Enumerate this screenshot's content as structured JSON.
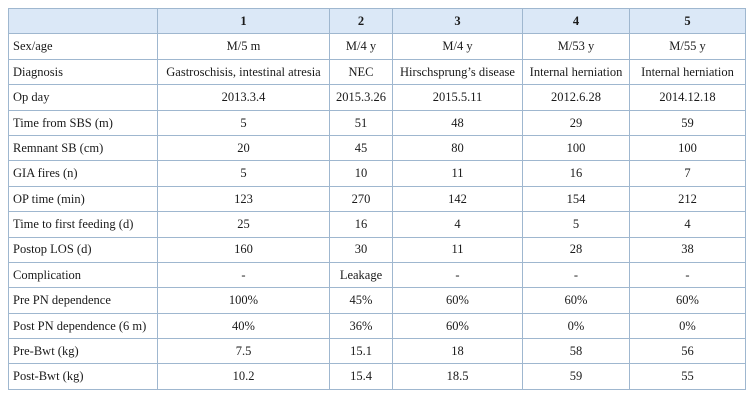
{
  "table": {
    "columns": [
      "",
      "1",
      "2",
      "3",
      "4",
      "5"
    ],
    "rows": [
      [
        "Sex/age",
        "M/5 m",
        "M/4 y",
        "M/4 y",
        "M/53 y",
        "M/55 y"
      ],
      [
        "Diagnosis",
        "Gastroschisis, intestinal atresia",
        "NEC",
        "Hirschsprung’s disease",
        "Internal herniation",
        "Internal herniation"
      ],
      [
        "Op day",
        "2013.3.4",
        "2015.3.26",
        "2015.5.11",
        "2012.6.28",
        "2014.12.18"
      ],
      [
        "Time from SBS (m)",
        "5",
        "51",
        "48",
        "29",
        "59"
      ],
      [
        "Remnant SB (cm)",
        "20",
        "45",
        "80",
        "100",
        "100"
      ],
      [
        "GIA fires (n)",
        "5",
        "10",
        "11",
        "16",
        "7"
      ],
      [
        "OP time (min)",
        "123",
        "270",
        "142",
        "154",
        "212"
      ],
      [
        "Time to first feeding (d)",
        "25",
        "16",
        "4",
        "5",
        "4"
      ],
      [
        "Postop LOS (d)",
        "160",
        "30",
        "11",
        "28",
        "38"
      ],
      [
        "Complication",
        "-",
        "Leakage",
        "-",
        "-",
        "-"
      ],
      [
        "Pre PN dependence",
        "100%",
        "45%",
        "60%",
        "60%",
        "60%"
      ],
      [
        "Post PN dependence (6 m)",
        "40%",
        "36%",
        "60%",
        "0%",
        "0%"
      ],
      [
        "Pre-Bwt (kg)",
        "7.5",
        "15.1",
        "18",
        "58",
        "56"
      ],
      [
        "Post-Bwt (kg)",
        "10.2",
        "15.4",
        "18.5",
        "59",
        "55"
      ]
    ]
  },
  "colors": {
    "header_background": "#dbe8f7",
    "border": "#9fb7cf",
    "text": "#1a1a1a"
  }
}
